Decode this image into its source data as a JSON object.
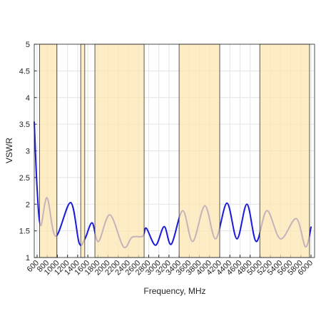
{
  "chart_data": {
    "type": "line",
    "xlabel": "Frequency, MHz",
    "ylabel": "VSWR",
    "xlim": [
      544,
      6070
    ],
    "ylim": [
      1,
      5
    ],
    "xticks": [
      600,
      800,
      1000,
      1200,
      1400,
      1600,
      1800,
      2000,
      2200,
      2400,
      2600,
      2800,
      3000,
      3200,
      3400,
      3600,
      3800,
      4000,
      4200,
      4400,
      4600,
      4800,
      5000,
      5200,
      5400,
      5600,
      5800,
      6000
    ],
    "yticks": [
      1,
      1.5,
      2,
      2.5,
      3,
      3.5,
      4,
      4.5,
      5
    ],
    "grid": true,
    "shaded_bands": [
      [
        650,
        990
      ],
      [
        1460,
        1540
      ],
      [
        1740,
        2710
      ],
      [
        3400,
        4200
      ],
      [
        4990,
        5970
      ]
    ],
    "band_color": "#fde7b0",
    "series": [
      {
        "name": "VSWR",
        "color": "#1a1adb",
        "x": [
          544,
          600,
          670,
          797,
          966,
          1262,
          1430,
          1543,
          1684,
          1810,
          2035,
          2303,
          2472,
          2683,
          2753,
          2936,
          3105,
          3246,
          3471,
          3668,
          3907,
          4118,
          4343,
          4540,
          4737,
          4920,
          5131,
          5398,
          5708,
          5891,
          6003
        ],
        "values": [
          3.55,
          2.3,
          1.6,
          2.12,
          1.4,
          2.03,
          1.27,
          1.35,
          1.65,
          1.3,
          1.8,
          1.2,
          1.38,
          1.4,
          1.55,
          1.23,
          1.58,
          1.25,
          1.88,
          1.3,
          1.97,
          1.35,
          2.02,
          1.35,
          2.0,
          1.3,
          1.88,
          1.35,
          1.73,
          1.2,
          1.58
        ]
      }
    ]
  }
}
